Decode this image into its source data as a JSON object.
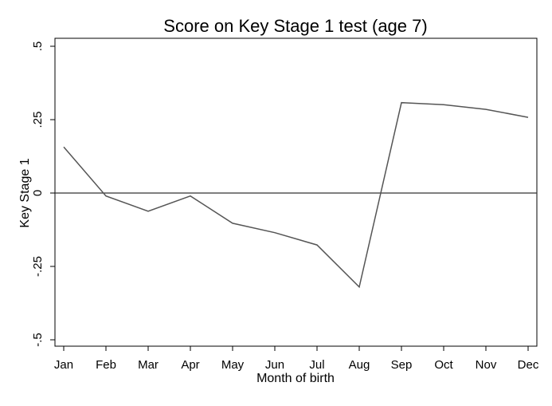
{
  "chart_data": {
    "type": "line",
    "title": "Score on Key Stage 1 test (age 7)",
    "xlabel": "Month of birth",
    "ylabel": "Key Stage 1",
    "categories": [
      "Jan",
      "Feb",
      "Mar",
      "Apr",
      "May",
      "Jun",
      "Jul",
      "Aug",
      "Sep",
      "Oct",
      "Nov",
      "Dec"
    ],
    "values": [
      0.157,
      -0.01,
      -0.062,
      -0.01,
      -0.103,
      -0.135,
      -0.177,
      -0.32,
      0.308,
      0.301,
      0.285,
      0.258
    ],
    "ylim": [
      -0.5,
      0.5
    ],
    "yticks": [
      -0.5,
      -0.25,
      0,
      0.25,
      0.5
    ],
    "ytick_labels": [
      "-.5",
      "-.25",
      "0",
      ".25",
      ".5"
    ],
    "reference_line_y": 0,
    "grid": false,
    "line_color": "#555555"
  }
}
